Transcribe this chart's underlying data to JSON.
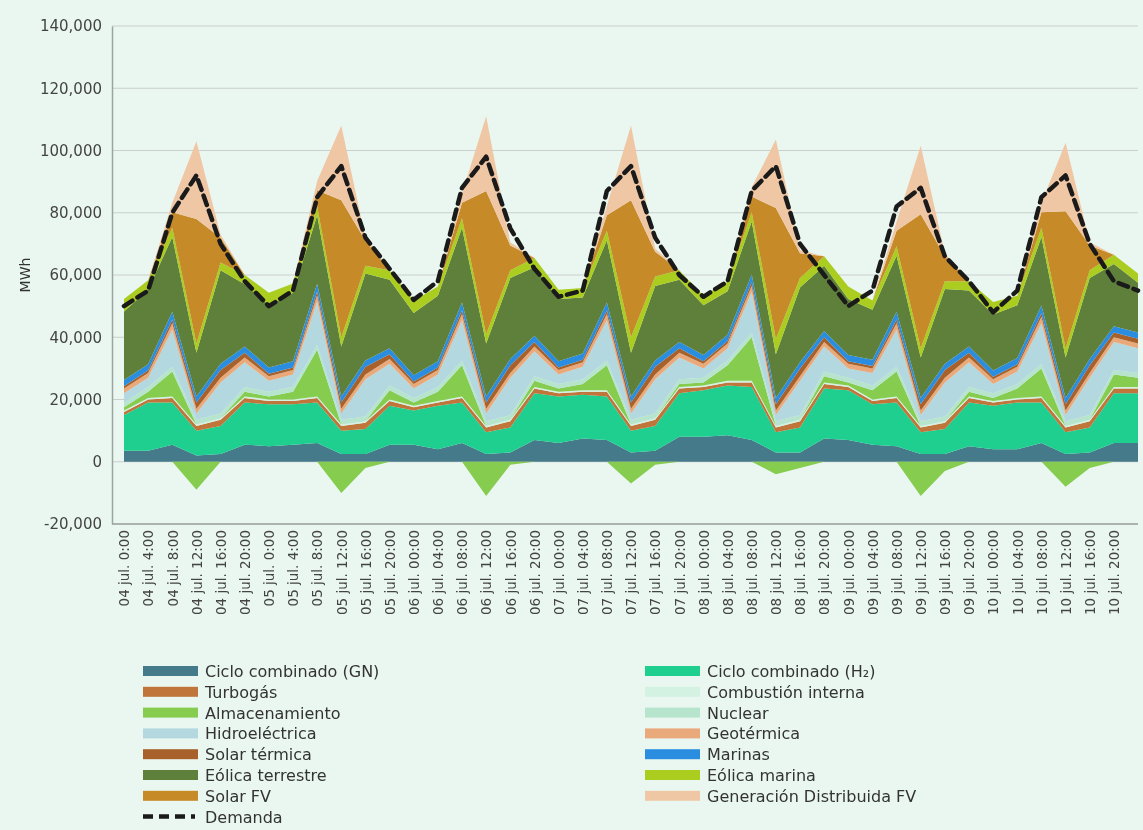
{
  "chart_data": [
    {
      "type": "area",
      "stacked": true,
      "ylabel": "MWh",
      "legend": "bottom",
      "grid": "y",
      "categories": [
        "04 jul. 0:00",
        "04 jul. 4:00",
        "04 jul. 8:00",
        "04 jul. 12:00",
        "04 jul. 16:00",
        "04 jul. 20:00",
        "05 jul. 0:00",
        "05 jul. 4:00",
        "05 jul. 8:00",
        "05 jul. 12:00",
        "05 jul. 16:00",
        "05 jul. 20:00",
        "06 jul. 00:00",
        "06 jul. 04:00",
        "06 jul. 08:00",
        "06 jul. 12:00",
        "06 jul. 16:00",
        "06 jul. 20:00",
        "07 jul. 00:00",
        "07 jul. 04:00",
        "07 jul. 08:00",
        "07 jul. 12:00",
        "07 jul. 16:00",
        "07 jul. 20:00",
        "08 jul. 00:00",
        "08 jul. 04:00",
        "08 jul. 08:00",
        "08 jul. 12:00",
        "08 jul. 16:00",
        "08 jul. 20:00",
        "09 jul. 00:00",
        "09 jul. 04:00",
        "09 jul. 08:00",
        "09 jul. 12:00",
        "09 jul. 16:00",
        "09 jul. 20:00",
        "10 jul. 00:00",
        "10 jul. 04:00",
        "10 jul. 08:00",
        "10 jul. 12:00",
        "10 jul. 16:00",
        "10 jul. 20:00",
        null
      ],
      "ylim": [
        -20000,
        140000
      ],
      "yticks": [
        {
          "value": -20000,
          "label": "-20,000"
        },
        {
          "value": 0,
          "label": "0"
        },
        {
          "value": 20000,
          "label": "20,000"
        },
        {
          "value": 40000,
          "label": "40,000"
        },
        {
          "value": 60000,
          "label": "60,000"
        },
        {
          "value": 80000,
          "label": "80,000"
        },
        {
          "value": 100000,
          "label": "100,000"
        },
        {
          "value": 120000,
          "label": "120,000"
        },
        {
          "value": 140000,
          "label": "140,000"
        }
      ],
      "series": [
        {
          "name": "Ciclo combinado (GN)",
          "color": "#457a8a",
          "values": [
            3500,
            3500,
            5500,
            2000,
            2500,
            5500,
            5000,
            5500,
            6000,
            2500,
            2500,
            5500,
            5500,
            4000,
            6000,
            2500,
            3000,
            7000,
            6000,
            7500,
            7000,
            3000,
            3500,
            8000,
            8000,
            8500,
            7000,
            3000,
            3000,
            7500,
            7000,
            5500,
            5000,
            2500,
            2500,
            5000,
            4000,
            4000,
            6000,
            2500,
            3000,
            6000,
            6000
          ]
        },
        {
          "name": "Ciclo combinado (H₂)",
          "color": "#1ecf8f",
          "values": [
            11500,
            15500,
            13500,
            8000,
            9000,
            13500,
            13500,
            13000,
            13000,
            7500,
            8000,
            12500,
            11000,
            14000,
            13000,
            7000,
            8000,
            15000,
            15000,
            14000,
            14000,
            7000,
            8000,
            14000,
            15000,
            16000,
            17000,
            6500,
            8000,
            16000,
            16000,
            13000,
            14000,
            7000,
            8000,
            14000,
            14000,
            15000,
            13000,
            7000,
            8000,
            16000,
            16000
          ]
        },
        {
          "name": "Turbogás",
          "color": "#c0763a",
          "values": [
            1000,
            1000,
            1500,
            1500,
            2000,
            1500,
            1000,
            1000,
            1500,
            1500,
            2000,
            1500,
            1000,
            1000,
            1500,
            1500,
            2000,
            1500,
            1000,
            1000,
            1500,
            1500,
            2000,
            1500,
            1000,
            1000,
            1500,
            1500,
            2000,
            1500,
            1000,
            1000,
            1500,
            1500,
            2000,
            1500,
            1000,
            1000,
            1500,
            1500,
            2000,
            1500,
            1500
          ]
        },
        {
          "name": "Combustión interna",
          "color": "#d3f2e2",
          "values": [
            500,
            500,
            500,
            500,
            500,
            500,
            500,
            500,
            500,
            500,
            500,
            500,
            500,
            500,
            500,
            500,
            500,
            500,
            500,
            500,
            500,
            500,
            500,
            500,
            500,
            500,
            500,
            500,
            500,
            500,
            500,
            500,
            500,
            500,
            500,
            500,
            500,
            500,
            500,
            500,
            500,
            500,
            500
          ]
        },
        {
          "name": "Almacenamiento",
          "color": "#85cc4f",
          "values": [
            1000,
            2000,
            8000,
            0,
            0,
            1500,
            1000,
            2500,
            15000,
            0,
            0,
            3000,
            1000,
            3000,
            10000,
            0,
            0,
            2000,
            1000,
            2000,
            8000,
            0,
            0,
            1000,
            1000,
            5000,
            14000,
            0,
            0,
            2000,
            1000,
            3000,
            8000,
            0,
            0,
            1500,
            1000,
            3000,
            9000,
            0,
            0,
            4000,
            3000
          ]
        },
        {
          "name": "Nuclear",
          "color": "#b6e4cc",
          "values": [
            1500,
            1500,
            1500,
            1500,
            1500,
            1500,
            1500,
            1500,
            1500,
            1500,
            1500,
            1500,
            1500,
            1500,
            1500,
            1500,
            1500,
            1500,
            1500,
            1500,
            1500,
            1500,
            1500,
            1500,
            1500,
            1500,
            1500,
            1500,
            1500,
            1500,
            1500,
            1500,
            1500,
            1500,
            1500,
            1500,
            1500,
            1500,
            1500,
            1500,
            1500,
            1500,
            1500
          ]
        },
        {
          "name": "Hidroeléctrica",
          "color": "#b4d8e0",
          "values": [
            3000,
            3000,
            12000,
            2000,
            10000,
            8000,
            3500,
            4000,
            14000,
            2000,
            12000,
            7000,
            3000,
            4000,
            13000,
            2500,
            12000,
            8000,
            3000,
            4000,
            13000,
            2000,
            11000,
            7000,
            3000,
            4000,
            13000,
            2000,
            11000,
            8000,
            3000,
            4000,
            12000,
            2000,
            11000,
            8000,
            3000,
            4000,
            13000,
            2000,
            12000,
            9000,
            8000
          ]
        },
        {
          "name": "Geotérmica",
          "color": "#e9a97a",
          "values": [
            1500,
            1500,
            2000,
            1500,
            1500,
            1500,
            1500,
            1500,
            2000,
            1500,
            1500,
            1500,
            1500,
            1500,
            2000,
            1500,
            1500,
            1500,
            1500,
            1500,
            2000,
            1500,
            1500,
            1500,
            1500,
            1500,
            2000,
            1500,
            1500,
            1500,
            1500,
            1500,
            2000,
            1500,
            1500,
            1500,
            1500,
            1500,
            2000,
            1500,
            1500,
            1500,
            1500
          ]
        },
        {
          "name": "Solar térmica",
          "color": "#a8612a",
          "values": [
            800,
            800,
            1200,
            2000,
            2500,
            1500,
            800,
            800,
            1200,
            2000,
            2500,
            1500,
            800,
            800,
            1200,
            2000,
            2500,
            1500,
            800,
            800,
            1200,
            2000,
            2500,
            1500,
            800,
            800,
            1200,
            2000,
            2500,
            1500,
            800,
            800,
            1200,
            2000,
            2500,
            1500,
            800,
            800,
            1200,
            2000,
            2500,
            1500,
            1500
          ]
        },
        {
          "name": "Marinas",
          "color": "#2a8de0",
          "values": [
            2000,
            2000,
            2500,
            2000,
            2000,
            2000,
            2000,
            2000,
            2500,
            2000,
            2000,
            2000,
            2000,
            2000,
            2500,
            2000,
            2000,
            2000,
            2000,
            2000,
            2500,
            2000,
            2000,
            2000,
            2000,
            2000,
            2500,
            2000,
            2000,
            2000,
            2000,
            2000,
            2500,
            2000,
            2000,
            2000,
            2000,
            2000,
            2500,
            2000,
            2000,
            2000,
            2000
          ]
        },
        {
          "name": "Eólica terrestre",
          "color": "#5f803a",
          "values": [
            22000,
            24000,
            24000,
            14000,
            30000,
            20000,
            20000,
            22000,
            22000,
            16000,
            28000,
            22000,
            20000,
            21000,
            24000,
            17000,
            26000,
            22000,
            20000,
            18000,
            20000,
            14000,
            24000,
            20000,
            16000,
            14000,
            17000,
            14000,
            24000,
            21000,
            18000,
            16000,
            18000,
            13000,
            24000,
            18000,
            18000,
            17000,
            22000,
            13000,
            26000,
            20000,
            16000
          ]
        },
        {
          "name": "Eólica marina",
          "color": "#aacd20",
          "values": [
            4000,
            3000,
            3000,
            3000,
            2500,
            3000,
            4000,
            3000,
            3000,
            3000,
            2500,
            3000,
            4000,
            3000,
            3000,
            3000,
            2500,
            3000,
            3000,
            3000,
            3000,
            5000,
            3000,
            3000,
            3000,
            3000,
            3000,
            5000,
            3000,
            3000,
            4000,
            3000,
            3000,
            3000,
            2500,
            3000,
            4000,
            3000,
            3000,
            3000,
            2500,
            3000,
            3000
          ]
        },
        {
          "name": "Solar FV",
          "color": "#c68a28",
          "values": [
            0,
            0,
            5000,
            40000,
            8000,
            0,
            0,
            0,
            5000,
            44000,
            8000,
            0,
            0,
            0,
            5000,
            46000,
            8000,
            0,
            0,
            0,
            5000,
            44000,
            8000,
            0,
            0,
            0,
            5000,
            42000,
            8000,
            0,
            0,
            0,
            5000,
            43000,
            8000,
            0,
            0,
            0,
            5000,
            44000,
            8000,
            0,
            0
          ]
        },
        {
          "name": "Generación Distribuida FV",
          "color": "#f0c7a4",
          "values": [
            0,
            0,
            3000,
            25000,
            1000,
            0,
            0,
            0,
            3000,
            24000,
            1000,
            0,
            0,
            0,
            3000,
            24000,
            1000,
            0,
            0,
            0,
            3000,
            24000,
            1000,
            0,
            0,
            0,
            3000,
            22000,
            1000,
            0,
            0,
            0,
            3000,
            22000,
            1000,
            0,
            0,
            0,
            3000,
            22000,
            1000,
            0,
            0
          ]
        },
        {
          "name": "Demanda",
          "type": "line",
          "color": "#1a1a1a",
          "line_style": "dashed",
          "values": [
            50000,
            55000,
            80000,
            92000,
            70000,
            58000,
            50000,
            55000,
            85000,
            95000,
            72000,
            62000,
            52000,
            58000,
            88000,
            98000,
            75000,
            62000,
            53000,
            55000,
            87000,
            95000,
            72000,
            60000,
            53000,
            58000,
            87000,
            95000,
            70000,
            60000,
            50000,
            55000,
            82000,
            88000,
            66000,
            58000,
            48000,
            55000,
            85000,
            92000,
            70000,
            58000,
            55000
          ]
        }
      ]
    },
    {
      "type": "area",
      "tick_labels": false,
      "ylim": [
        -20000,
        140000
      ],
      "categories": [
        null,
        null,
        null,
        null,
        null,
        null,
        null,
        null,
        null,
        null,
        null,
        null,
        null,
        null,
        null,
        null,
        null,
        null,
        null,
        null,
        null,
        null,
        null,
        null,
        null,
        null,
        null,
        null,
        null,
        null,
        null,
        null,
        null,
        null,
        null,
        null,
        null,
        null,
        null,
        null,
        null,
        null,
        null
      ],
      "series": [
        {
          "color": "#85cc4f",
          "values": [
            0,
            0,
            0,
            -9000,
            0,
            0,
            0,
            0,
            0,
            -10000,
            -2000,
            0,
            0,
            0,
            0,
            -11000,
            -1000,
            0,
            0,
            0,
            0,
            -7000,
            -1000,
            0,
            0,
            0,
            0,
            -4000,
            -2000,
            0,
            0,
            0,
            0,
            -11000,
            -3000,
            0,
            0,
            0,
            0,
            -8000,
            -2000,
            0,
            0
          ]
        }
      ]
    }
  ]
}
